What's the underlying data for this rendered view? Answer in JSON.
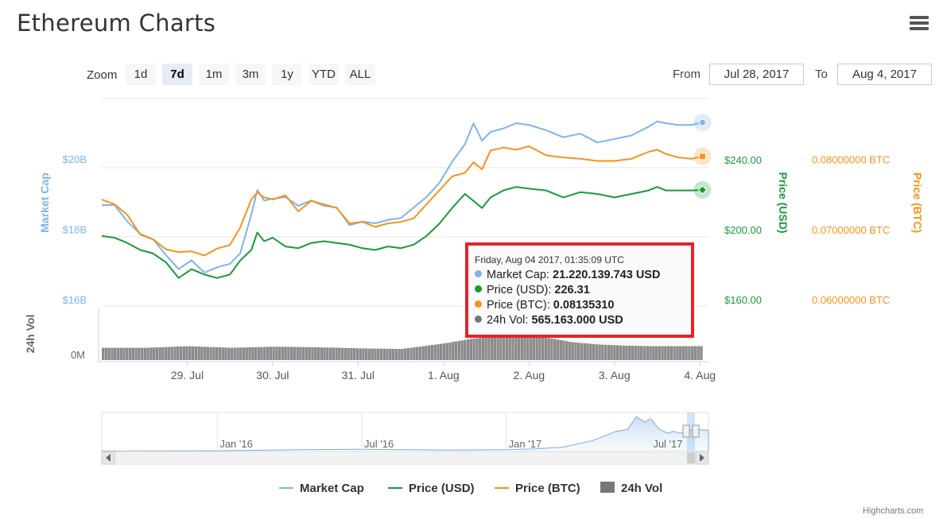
{
  "title": "Ethereum Charts",
  "toolbar": {
    "zoom_label": "Zoom",
    "zoom_buttons": [
      "1d",
      "7d",
      "1m",
      "3m",
      "1y",
      "YTD",
      "ALL"
    ],
    "active_zoom": "7d",
    "from_label": "From",
    "from_value": "Jul 28, 2017",
    "to_label": "To",
    "to_value": "Aug 4, 2017"
  },
  "tooltip": {
    "header": "Friday, Aug 04 2017, 01:35:09 UTC",
    "rows": [
      {
        "label": "Market Cap: ",
        "value": "21.220.139.743 USD",
        "color": "#7cb5ec"
      },
      {
        "label": "Price (USD): ",
        "value": "226.31",
        "color": "#1a9a3b"
      },
      {
        "label": "Price (BTC): ",
        "value": "0.08135310",
        "color": "#f7931a"
      },
      {
        "label": "24h Vol: ",
        "value": "565.163.000 USD",
        "color": "#777777"
      }
    ]
  },
  "legend": [
    {
      "name": "Market Cap",
      "color": "#7cb5ec",
      "kind": "line"
    },
    {
      "name": "Price (USD)",
      "color": "#1a9a3b",
      "kind": "line"
    },
    {
      "name": "Price (BTC)",
      "color": "#f7931a",
      "kind": "line"
    },
    {
      "name": "24h Vol",
      "color": "#777777",
      "kind": "box"
    }
  ],
  "credits": "Highcharts.com",
  "colors": {
    "market_cap": "#7cb5ec",
    "price_usd": "#1a9a3b",
    "price_btc": "#f7931a",
    "volume": "#777777"
  },
  "chart_data": {
    "type": "line",
    "x_ticks": [
      "29. Jul",
      "30. Jul",
      "31. Jul",
      "1. Aug",
      "2. Aug",
      "3. Aug",
      "4. Aug"
    ],
    "x_tick_days": [
      1,
      2,
      3,
      4,
      5,
      6,
      7
    ],
    "x_range_days": [
      0,
      7.1
    ],
    "axes": {
      "market_cap": {
        "title": "Market Cap",
        "ticks": [
          "$16B",
          "$18B",
          "$20B"
        ],
        "tick_values": [
          16,
          18,
          20
        ],
        "range": [
          16,
          21.9
        ]
      },
      "price_usd": {
        "title": "Price (USD)",
        "ticks": [
          "$160.00",
          "$200.00",
          "$240.00"
        ],
        "tick_values": [
          160,
          200,
          240
        ],
        "range": [
          160,
          278.5
        ]
      },
      "price_btc": {
        "title": "Price (BTC)",
        "ticks": [
          "0.06000000 BTC",
          "0.07000000 BTC",
          "0.08000000 BTC"
        ],
        "tick_values": [
          0.06,
          0.07,
          0.08
        ],
        "range": [
          0.06,
          0.0896
        ]
      },
      "volume": {
        "title": "24h Vol",
        "ticks": [
          "0M"
        ],
        "tick_values": [
          0
        ]
      }
    },
    "series": [
      {
        "name": "Market Cap",
        "axis": "market_cap",
        "unit": "billion USD",
        "x": [
          0,
          0.15,
          0.3,
          0.45,
          0.6,
          0.75,
          0.9,
          1.05,
          1.2,
          1.35,
          1.5,
          1.62,
          1.75,
          1.82,
          1.9,
          2.0,
          2.15,
          2.3,
          2.45,
          2.6,
          2.75,
          2.9,
          3.05,
          3.2,
          3.35,
          3.5,
          3.65,
          3.8,
          3.95,
          4.1,
          4.25,
          4.35,
          4.45,
          4.55,
          4.7,
          4.85,
          5.0,
          5.2,
          5.4,
          5.6,
          5.8,
          6.0,
          6.2,
          6.4,
          6.5,
          6.6,
          6.75,
          6.9,
          7.03
        ],
        "values": [
          18.87,
          18.87,
          18.4,
          18.05,
          17.9,
          17.45,
          17.05,
          17.3,
          16.95,
          17.1,
          17.2,
          17.5,
          18.6,
          19.3,
          19.0,
          19.05,
          19.1,
          18.85,
          19.0,
          18.85,
          18.8,
          18.3,
          18.4,
          18.35,
          18.45,
          18.5,
          18.8,
          19.1,
          19.5,
          20.1,
          20.6,
          21.2,
          20.7,
          20.95,
          21.05,
          21.2,
          21.15,
          21.0,
          20.8,
          20.9,
          20.65,
          20.75,
          20.85,
          21.1,
          21.25,
          21.2,
          21.15,
          21.15,
          21.22
        ]
      },
      {
        "name": "Price (USD)",
        "axis": "price_usd",
        "unit": "USD",
        "x": [
          0,
          0.15,
          0.3,
          0.45,
          0.6,
          0.75,
          0.9,
          1.05,
          1.2,
          1.35,
          1.5,
          1.62,
          1.75,
          1.82,
          1.9,
          2.0,
          2.15,
          2.3,
          2.45,
          2.6,
          2.75,
          2.9,
          3.05,
          3.2,
          3.35,
          3.5,
          3.65,
          3.8,
          3.95,
          4.1,
          4.25,
          4.35,
          4.45,
          4.55,
          4.7,
          4.85,
          5.0,
          5.2,
          5.4,
          5.6,
          5.8,
          6.0,
          6.2,
          6.4,
          6.5,
          6.6,
          6.75,
          6.9,
          7.03
        ],
        "values": [
          200.0,
          199.0,
          196.0,
          192.0,
          190.0,
          185.0,
          176.0,
          181.0,
          178.0,
          176.0,
          178.0,
          186.0,
          192.0,
          202.0,
          197.0,
          199.0,
          194.0,
          193.0,
          196.0,
          197.0,
          196.0,
          195.0,
          193.0,
          192.0,
          194.0,
          193.0,
          195.0,
          200.0,
          207.0,
          216.0,
          224.0,
          220.0,
          216.0,
          222.0,
          226.0,
          228.0,
          227.0,
          226.0,
          222.0,
          225.0,
          224.0,
          222.0,
          224.0,
          226.0,
          228.0,
          226.0,
          226.0,
          226.0,
          226.31
        ]
      },
      {
        "name": "Price (BTC)",
        "axis": "price_btc",
        "unit": "BTC",
        "x": [
          0,
          0.15,
          0.3,
          0.45,
          0.6,
          0.75,
          0.9,
          1.05,
          1.2,
          1.35,
          1.5,
          1.62,
          1.75,
          1.82,
          1.9,
          2.0,
          2.15,
          2.3,
          2.45,
          2.6,
          2.75,
          2.9,
          3.05,
          3.2,
          3.35,
          3.5,
          3.65,
          3.8,
          3.95,
          4.1,
          4.25,
          4.35,
          4.45,
          4.55,
          4.7,
          4.85,
          5.0,
          5.2,
          5.4,
          5.6,
          5.8,
          6.0,
          6.2,
          6.4,
          6.5,
          6.6,
          6.75,
          6.9,
          7.03
        ],
        "values": [
          0.0752,
          0.0745,
          0.073,
          0.0702,
          0.0695,
          0.0681,
          0.0677,
          0.0678,
          0.0672,
          0.0682,
          0.0687,
          0.0712,
          0.0752,
          0.0762,
          0.0755,
          0.0752,
          0.0758,
          0.0735,
          0.075,
          0.0745,
          0.074,
          0.0718,
          0.072,
          0.0713,
          0.0718,
          0.072,
          0.0725,
          0.0745,
          0.0765,
          0.0785,
          0.079,
          0.0805,
          0.0795,
          0.0822,
          0.0826,
          0.0823,
          0.0828,
          0.0815,
          0.0812,
          0.081,
          0.0807,
          0.0807,
          0.081,
          0.082,
          0.0823,
          0.0817,
          0.0812,
          0.081,
          0.08135
        ]
      },
      {
        "name": "24h Vol",
        "axis": "volume",
        "type": "column",
        "unit": "relative",
        "x": [
          0,
          0.5,
          1.0,
          1.5,
          2.0,
          2.5,
          3.0,
          3.5,
          4.0,
          4.3,
          4.6,
          4.9,
          5.2,
          5.5,
          5.8,
          6.1,
          6.4,
          6.7,
          7.03
        ],
        "values": [
          0.22,
          0.22,
          0.25,
          0.22,
          0.24,
          0.23,
          0.21,
          0.2,
          0.3,
          0.38,
          0.42,
          0.44,
          0.4,
          0.32,
          0.28,
          0.26,
          0.25,
          0.25,
          0.25
        ]
      }
    ],
    "navigator": {
      "ticks": [
        "Jan '16",
        "Jul '16",
        "Jan '17",
        "Jul '17"
      ],
      "x_range_years": [
        2015.6,
        2017.7
      ],
      "tick_years": [
        2016.0,
        2016.5,
        2017.0,
        2017.5
      ]
    }
  }
}
